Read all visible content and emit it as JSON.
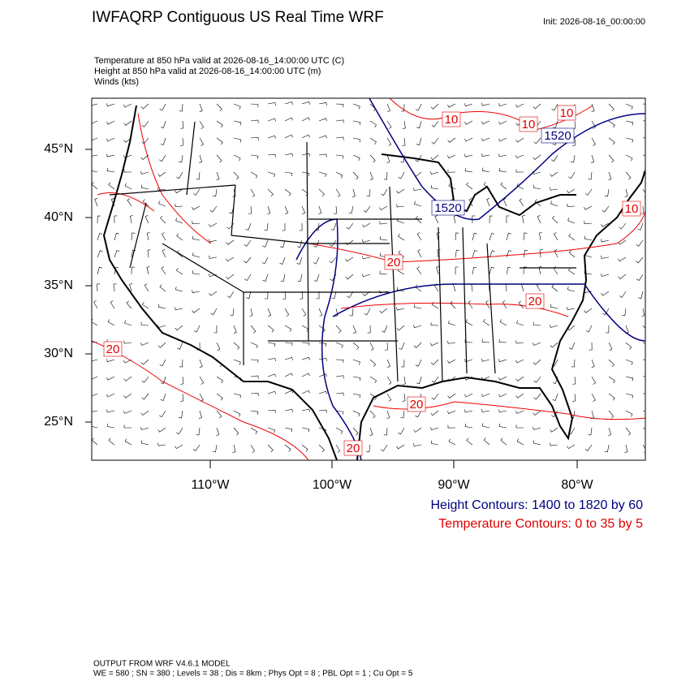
{
  "header": {
    "title": "IWFAQRP Contiguous US Real Time WRF",
    "init": "Init: 2026-08-16_00:00:00"
  },
  "fields": [
    "Temperature at 850 hPa valid at 2026-08-16_14:00:00 UTC   (C)",
    "Height at 850 hPa valid at 2026-08-16_14:00:00 UTC   (m)",
    "Winds   (kts)"
  ],
  "lat_labels": [
    "45°N",
    "40°N",
    "35°N",
    "30°N",
    "25°N"
  ],
  "lon_labels": [
    "110°W",
    "100°W",
    "90°W",
    "80°W"
  ],
  "contour_labels": [
    "10",
    "10",
    "10",
    "1520",
    "1520",
    "10",
    "20",
    "20",
    "20",
    "20",
    "20"
  ],
  "legend": {
    "height": "Height Contours: 1400 to 1820 by 60",
    "temperature": "Temperature Contours: 0 to 35 by 5"
  },
  "footer": {
    "model": "OUTPUT FROM WRF V4.6.1 MODEL",
    "settings": "WE = 580 ; SN = 380 ; Levels = 38 ; Dis = 8km ; Phys Opt = 8 ; PBL Opt = 1 ; Cu Opt = 5"
  }
}
